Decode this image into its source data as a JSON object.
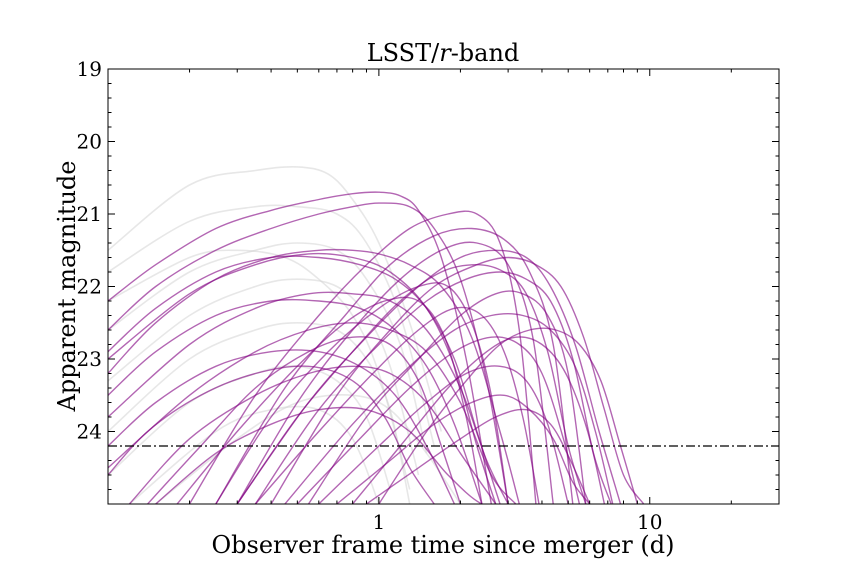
{
  "chart_data": {
    "type": "line",
    "title": "LSST/r-band",
    "title_main": "LSST/",
    "title_italic": "r",
    "title_rest": "-band",
    "xlabel": "Observer frame time since merger (d)",
    "ylabel": "Apparent magnitude",
    "xscale": "log",
    "xlim": [
      0.1,
      30
    ],
    "ylim": [
      19,
      25
    ],
    "y_inverted": true,
    "x_tick_labels": [
      {
        "value": 1,
        "label": "1"
      },
      {
        "value": 10,
        "label": "10"
      }
    ],
    "y_tick_labels": [
      {
        "value": 19,
        "label": "19"
      },
      {
        "value": 20,
        "label": "20"
      },
      {
        "value": 21,
        "label": "21"
      },
      {
        "value": 22,
        "label": "22"
      },
      {
        "value": 23,
        "label": "23"
      },
      {
        "value": 24,
        "label": "24"
      }
    ],
    "limiting_magnitude": 24.2,
    "grid": false,
    "colors": {
      "detectable": "#800080",
      "undetectable": "#d3d3d3",
      "threshold": "#000000"
    },
    "series": [
      {
        "group": "undetectable",
        "x": [
          0.1,
          0.2,
          0.35,
          0.5,
          0.65,
          0.8,
          1.0,
          1.3,
          1.7
        ],
        "y": [
          21.5,
          20.6,
          20.4,
          20.35,
          20.45,
          20.8,
          21.4,
          22.5,
          24.0
        ]
      },
      {
        "group": "undetectable",
        "x": [
          0.1,
          0.2,
          0.35,
          0.5,
          0.7,
          0.9,
          1.2,
          1.6
        ],
        "y": [
          21.8,
          21.1,
          20.9,
          20.9,
          21.0,
          21.4,
          22.4,
          24.2
        ]
      },
      {
        "group": "undetectable",
        "x": [
          0.1,
          0.2,
          0.35,
          0.5,
          0.7,
          0.9,
          1.2,
          1.5
        ],
        "y": [
          22.6,
          21.8,
          21.5,
          21.4,
          21.5,
          21.9,
          22.8,
          24.3
        ]
      },
      {
        "group": "undetectable",
        "x": [
          0.1,
          0.2,
          0.35,
          0.5,
          0.7,
          0.9,
          1.1,
          1.4
        ],
        "y": [
          23.3,
          22.4,
          22.0,
          21.9,
          22.0,
          22.4,
          23.1,
          24.6
        ]
      },
      {
        "group": "undetectable",
        "x": [
          0.1,
          0.2,
          0.35,
          0.5,
          0.7,
          0.9,
          1.1,
          1.3
        ],
        "y": [
          24.0,
          23.0,
          22.6,
          22.5,
          22.6,
          23.0,
          23.7,
          25.0
        ]
      },
      {
        "group": "undetectable",
        "x": [
          0.1,
          0.2,
          0.35,
          0.5,
          0.7,
          0.9,
          1.1
        ],
        "y": [
          24.6,
          23.6,
          23.2,
          23.1,
          23.3,
          23.8,
          24.8
        ]
      },
      {
        "group": "undetectable",
        "x": [
          0.12,
          0.25,
          0.4,
          0.6,
          0.8,
          1.0
        ],
        "y": [
          25.0,
          24.0,
          23.7,
          23.7,
          24.1,
          25.0
        ]
      },
      {
        "group": "undetectable",
        "x": [
          0.1,
          0.2,
          0.3,
          0.45,
          0.6,
          0.8,
          1.0,
          1.3
        ],
        "y": [
          22.2,
          21.6,
          21.5,
          21.6,
          21.9,
          22.4,
          23.2,
          24.8
        ]
      },
      {
        "group": "undetectable",
        "x": [
          0.15,
          0.3,
          0.5,
          0.8,
          1.1,
          1.5,
          2.0
        ],
        "y": [
          25.0,
          24.1,
          23.6,
          23.5,
          23.7,
          24.3,
          25.0
        ]
      },
      {
        "group": "detectable",
        "x": [
          0.1,
          0.15,
          0.25,
          0.4,
          0.6,
          0.8,
          1.0,
          1.2,
          1.4,
          1.7,
          2.1,
          2.6
        ],
        "y": [
          22.2,
          21.7,
          21.2,
          20.95,
          20.8,
          20.72,
          20.7,
          20.75,
          20.95,
          21.6,
          23.0,
          25.0
        ]
      },
      {
        "group": "detectable",
        "x": [
          0.1,
          0.15,
          0.25,
          0.4,
          0.6,
          0.8,
          1.0,
          1.3,
          1.6,
          2.0,
          2.5,
          3.0
        ],
        "y": [
          22.6,
          22.0,
          21.5,
          21.2,
          21.0,
          20.9,
          20.85,
          20.9,
          21.2,
          21.9,
          23.3,
          25.0
        ]
      },
      {
        "group": "detectable",
        "x": [
          0.1,
          0.15,
          0.25,
          0.4,
          0.6,
          0.8,
          1.0,
          1.3,
          1.7,
          2.2,
          2.8,
          3.3
        ],
        "y": [
          23.2,
          22.5,
          21.9,
          21.6,
          21.5,
          21.5,
          21.55,
          21.7,
          22.0,
          22.7,
          24.0,
          25.0
        ]
      },
      {
        "group": "detectable",
        "x": [
          0.1,
          0.2,
          0.35,
          0.55,
          0.8,
          1.1,
          1.5,
          1.9,
          2.3,
          2.7
        ],
        "y": [
          23.0,
          22.1,
          21.7,
          21.55,
          21.6,
          21.8,
          22.3,
          23.1,
          24.2,
          25.0
        ]
      },
      {
        "group": "detectable",
        "x": [
          0.1,
          0.2,
          0.35,
          0.55,
          0.8,
          1.1,
          1.5,
          2.0,
          2.5,
          3.0
        ],
        "y": [
          23.8,
          22.8,
          22.3,
          22.1,
          22.1,
          22.2,
          22.6,
          23.4,
          24.4,
          25.0
        ]
      },
      {
        "group": "detectable",
        "x": [
          0.1,
          0.2,
          0.35,
          0.55,
          0.8,
          1.1,
          1.5,
          2.0,
          2.6,
          3.2
        ],
        "y": [
          24.5,
          23.5,
          22.9,
          22.6,
          22.5,
          22.6,
          22.9,
          23.6,
          24.6,
          25.0
        ]
      },
      {
        "group": "detectable",
        "x": [
          0.12,
          0.2,
          0.35,
          0.55,
          0.8,
          1.1,
          1.5,
          2.0,
          2.7
        ],
        "y": [
          25.0,
          24.1,
          23.5,
          23.2,
          23.1,
          23.2,
          23.6,
          24.3,
          25.0
        ]
      },
      {
        "group": "detectable",
        "x": [
          0.15,
          0.25,
          0.4,
          0.6,
          0.9,
          1.3,
          1.8,
          2.4,
          3.0
        ],
        "y": [
          25.0,
          24.3,
          23.9,
          23.7,
          23.7,
          24.0,
          24.6,
          25.0,
          25.0
        ]
      },
      {
        "group": "detectable",
        "x": [
          0.3,
          0.5,
          0.8,
          1.2,
          1.7,
          2.3,
          2.9,
          3.5,
          4.2,
          5.0,
          5.8
        ],
        "y": [
          25.0,
          23.8,
          22.9,
          22.2,
          21.8,
          21.7,
          21.8,
          22.1,
          22.9,
          24.2,
          25.0
        ]
      },
      {
        "group": "detectable",
        "x": [
          0.35,
          0.6,
          1.0,
          1.5,
          2.1,
          2.8,
          3.5,
          4.3,
          5.2,
          6.2,
          7.2
        ],
        "y": [
          25.0,
          23.7,
          22.8,
          22.2,
          21.9,
          21.8,
          21.9,
          22.2,
          23.0,
          24.3,
          25.0
        ]
      },
      {
        "group": "detectable",
        "x": [
          0.4,
          0.7,
          1.1,
          1.6,
          2.3,
          3.0,
          3.8,
          4.7,
          5.7,
          6.8,
          8.0,
          9.5
        ],
        "y": [
          25.0,
          23.5,
          22.6,
          22.0,
          21.7,
          21.6,
          21.7,
          22.0,
          22.7,
          23.7,
          24.6,
          25.0
        ]
      },
      {
        "group": "detectable",
        "x": [
          0.3,
          0.55,
          0.9,
          1.4,
          2.0,
          2.7,
          3.5,
          4.3,
          5.3,
          6.5,
          7.8
        ],
        "y": [
          25.0,
          23.6,
          22.7,
          22.0,
          21.6,
          21.5,
          21.6,
          22.0,
          22.8,
          24.0,
          25.0
        ]
      },
      {
        "group": "detectable",
        "x": [
          0.25,
          0.45,
          0.75,
          1.1,
          1.6,
          2.2,
          2.9,
          3.6,
          4.4,
          5.2
        ],
        "y": [
          25.0,
          23.4,
          22.4,
          21.7,
          21.3,
          21.2,
          21.35,
          21.8,
          22.8,
          25.0
        ]
      },
      {
        "group": "detectable",
        "x": [
          0.2,
          0.35,
          0.6,
          0.9,
          1.3,
          1.8,
          2.3,
          2.8,
          3.3,
          3.8
        ],
        "y": [
          25.0,
          23.5,
          22.4,
          21.7,
          21.2,
          21.0,
          21.0,
          21.4,
          22.6,
          25.0
        ]
      },
      {
        "group": "detectable",
        "x": [
          0.45,
          0.8,
          1.3,
          1.9,
          2.6,
          3.4,
          4.3,
          5.3,
          6.3,
          7.3
        ],
        "y": [
          25.0,
          23.9,
          23.1,
          22.6,
          22.4,
          22.4,
          22.6,
          23.1,
          24.0,
          25.0
        ]
      },
      {
        "group": "detectable",
        "x": [
          0.5,
          0.85,
          1.3,
          1.9,
          2.6,
          3.3,
          4.0,
          4.8,
          5.5
        ],
        "y": [
          25.0,
          24.1,
          23.4,
          22.9,
          22.7,
          22.8,
          23.2,
          24.1,
          25.0
        ]
      },
      {
        "group": "detectable",
        "x": [
          0.6,
          1.0,
          1.5,
          2.1,
          2.8,
          3.5,
          4.2,
          5.0
        ],
        "y": [
          25.0,
          24.2,
          23.6,
          23.2,
          23.1,
          23.3,
          23.9,
          25.0
        ]
      },
      {
        "group": "detectable",
        "x": [
          0.35,
          0.6,
          0.95,
          1.4,
          1.9,
          2.4,
          2.9,
          3.4,
          3.9
        ],
        "y": [
          25.0,
          24.0,
          23.2,
          22.6,
          22.3,
          22.4,
          22.9,
          23.8,
          25.0
        ]
      },
      {
        "group": "detectable",
        "x": [
          0.25,
          0.4,
          0.65,
          1.0,
          1.4,
          1.8,
          2.2,
          2.6,
          3.0
        ],
        "y": [
          25.0,
          23.8,
          22.9,
          22.3,
          22.0,
          22.0,
          22.5,
          23.5,
          25.0
        ]
      },
      {
        "group": "detectable",
        "x": [
          0.18,
          0.3,
          0.5,
          0.75,
          1.05,
          1.4,
          1.75,
          2.1,
          2.4
        ],
        "y": [
          25.0,
          24.0,
          23.1,
          22.5,
          22.2,
          22.2,
          22.7,
          23.8,
          25.0
        ]
      },
      {
        "group": "detectable",
        "x": [
          0.14,
          0.22,
          0.35,
          0.55,
          0.8,
          1.1,
          1.4,
          1.7,
          2.0
        ],
        "y": [
          25.0,
          24.2,
          23.4,
          22.9,
          22.7,
          22.8,
          23.3,
          24.2,
          25.0
        ]
      },
      {
        "group": "detectable",
        "x": [
          0.1,
          0.14,
          0.22,
          0.35,
          0.55,
          0.8,
          1.05,
          1.3,
          1.6
        ],
        "y": [
          24.6,
          24.0,
          23.5,
          23.2,
          23.1,
          23.3,
          23.8,
          24.5,
          25.0
        ]
      },
      {
        "group": "detectable",
        "x": [
          0.7,
          1.1,
          1.6,
          2.2,
          2.9,
          3.6,
          4.4,
          5.2,
          6.0
        ],
        "y": [
          25.0,
          24.4,
          23.9,
          23.6,
          23.5,
          23.7,
          24.1,
          24.7,
          25.0
        ]
      },
      {
        "group": "detectable",
        "x": [
          0.3,
          0.5,
          0.8,
          1.2,
          1.7,
          2.3,
          3.0,
          3.7,
          4.4
        ],
        "y": [
          25.0,
          23.6,
          22.6,
          21.9,
          21.5,
          21.4,
          21.7,
          22.7,
          25.0
        ]
      },
      {
        "group": "detectable",
        "x": [
          0.1,
          0.15,
          0.25,
          0.4,
          0.6,
          0.85,
          1.15,
          1.5,
          1.9,
          2.3,
          2.8
        ],
        "y": [
          22.9,
          22.3,
          21.8,
          21.6,
          21.6,
          21.7,
          21.9,
          22.3,
          23.0,
          24.0,
          25.0
        ]
      },
      {
        "group": "detectable",
        "x": [
          0.1,
          0.15,
          0.25,
          0.4,
          0.6,
          0.85,
          1.15,
          1.5,
          1.9,
          2.4
        ],
        "y": [
          23.5,
          22.9,
          22.4,
          22.2,
          22.2,
          22.3,
          22.6,
          23.1,
          23.9,
          25.0
        ]
      },
      {
        "group": "detectable",
        "x": [
          0.1,
          0.15,
          0.25,
          0.4,
          0.6,
          0.85,
          1.15,
          1.5,
          1.9
        ],
        "y": [
          24.2,
          23.6,
          23.1,
          22.9,
          22.9,
          23.1,
          23.5,
          24.2,
          25.0
        ]
      },
      {
        "group": "detectable",
        "x": [
          1.0,
          1.5,
          2.1,
          2.8,
          3.6,
          4.5,
          5.5,
          6.6,
          7.8,
          9.0
        ],
        "y": [
          25.0,
          24.0,
          23.3,
          22.8,
          22.6,
          22.6,
          22.8,
          23.3,
          24.2,
          25.0
        ]
      },
      {
        "group": "detectable",
        "x": [
          0.8,
          1.2,
          1.8,
          2.5,
          3.2,
          4.0,
          4.9,
          5.9,
          6.8
        ],
        "y": [
          25.0,
          24.2,
          23.4,
          22.9,
          22.7,
          22.8,
          23.2,
          24.0,
          25.0
        ]
      },
      {
        "group": "detectable",
        "x": [
          0.55,
          0.9,
          1.4,
          2.0,
          2.7,
          3.4,
          4.2,
          5.0,
          5.8
        ],
        "y": [
          25.0,
          23.8,
          23.0,
          22.4,
          22.1,
          22.1,
          22.4,
          23.2,
          25.0
        ]
      },
      {
        "group": "detectable",
        "x": [
          0.9,
          1.4,
          2.0,
          2.7,
          3.5,
          4.3,
          5.1,
          6.0
        ],
        "y": [
          25.0,
          24.5,
          24.1,
          23.8,
          23.7,
          23.9,
          24.4,
          25.0
        ]
      }
    ]
  }
}
